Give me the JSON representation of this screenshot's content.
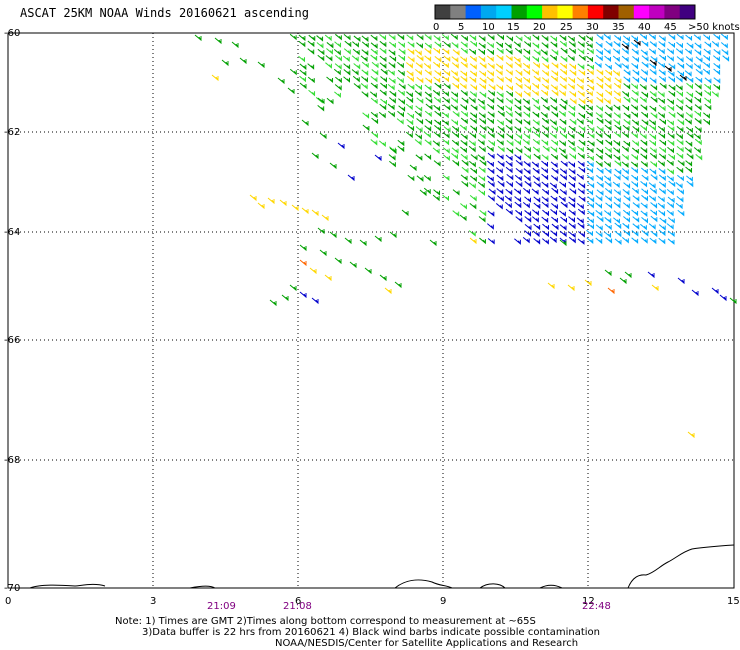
{
  "title": "ASCAT 25KM NOAA Winds 20160621 ascending",
  "legend": {
    "colors": [
      "#404040",
      "#808080",
      "#0060ff",
      "#00a8f0",
      "#00d0ff",
      "#00a000",
      "#00ff00",
      "#ffc000",
      "#ffff00",
      "#ff8000",
      "#ff0000",
      "#800000",
      "#a06000",
      "#ff00ff",
      "#c000c0",
      "#800080",
      "#400080"
    ],
    "labels": [
      "0",
      "5",
      "10",
      "15",
      "20",
      "25",
      "30",
      "35",
      "40",
      "45"
    ],
    "unit_label": ">50 knots"
  },
  "axes": {
    "x_ticks": [
      "0",
      "3",
      "6",
      "9",
      "12",
      "15"
    ],
    "y_ticks": [
      "-60",
      "-62",
      "-64",
      "-66",
      "-68",
      "-70"
    ],
    "times": [
      "21:09",
      "21:08",
      "22:48"
    ]
  },
  "notes": [
    "Note: 1) Times are GMT 2)Times along bottom correspond to measurement at ~65S",
    "3)Data buffer is 22 hrs from 20160621 4) Black wind barbs indicate possible contamination",
    "NOAA/NESDIS/Center for Satellite Applications and Research"
  ],
  "palette": {
    "green": "#00a000",
    "light_green": "#33dd33",
    "yellow": "#ffd700",
    "blue": "#0000cc",
    "cyan": "#00aaff",
    "orange": "#ff6600",
    "black": "#000000"
  }
}
